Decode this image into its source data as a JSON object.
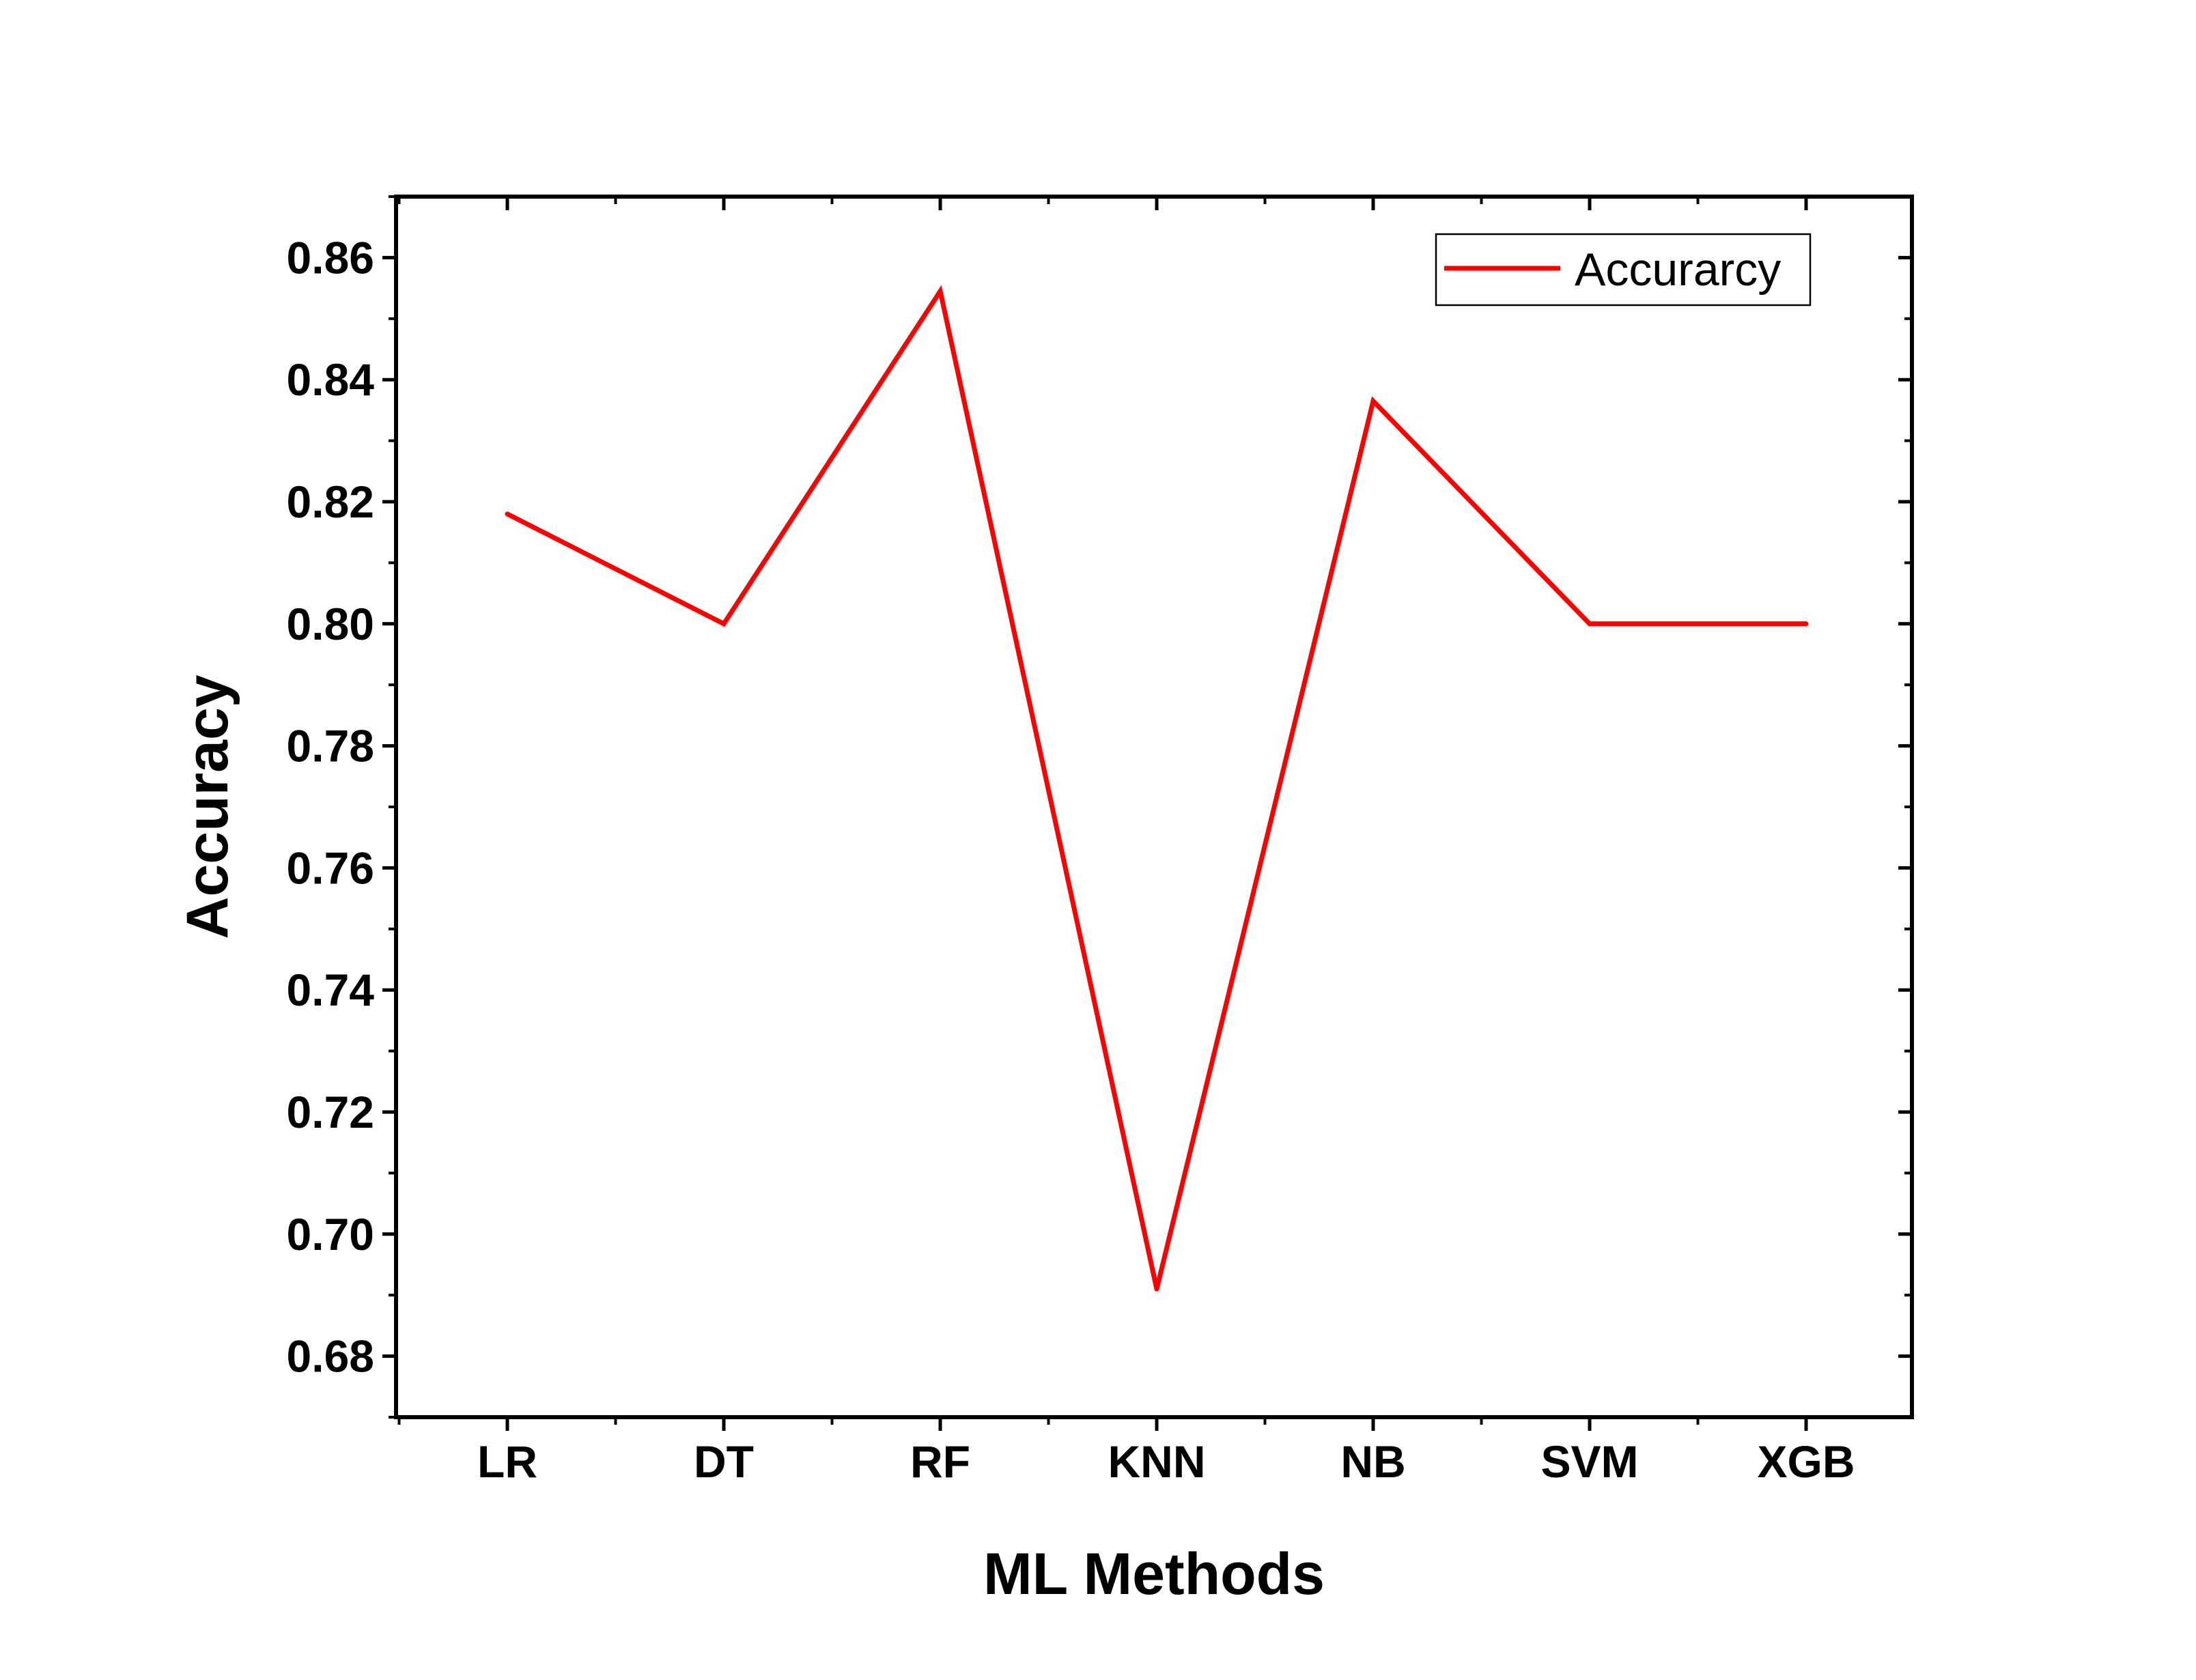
{
  "chart_data": {
    "type": "line",
    "categories": [
      "LR",
      "DT",
      "RF",
      "KNN",
      "NB",
      "SVM",
      "XGB"
    ],
    "series": [
      {
        "name": "Accurarcy",
        "color": "#ff0000",
        "values": [
          0.818,
          0.8,
          0.8545,
          0.691,
          0.8365,
          0.8,
          0.8
        ]
      }
    ],
    "xlabel": "ML Methods",
    "ylabel": "Accuracy",
    "ylim": [
      0.67,
      0.87
    ],
    "yticks": [
      0.68,
      0.7,
      0.72,
      0.74,
      0.76,
      0.78,
      0.8,
      0.82,
      0.84,
      0.86
    ],
    "ytick_labels": [
      "0.68",
      "0.70",
      "0.72",
      "0.74",
      "0.76",
      "0.78",
      "0.80",
      "0.82",
      "0.84",
      "0.86"
    ],
    "grid": false,
    "legend": {
      "position": "top-right",
      "entries": [
        "Accurarcy"
      ]
    }
  }
}
